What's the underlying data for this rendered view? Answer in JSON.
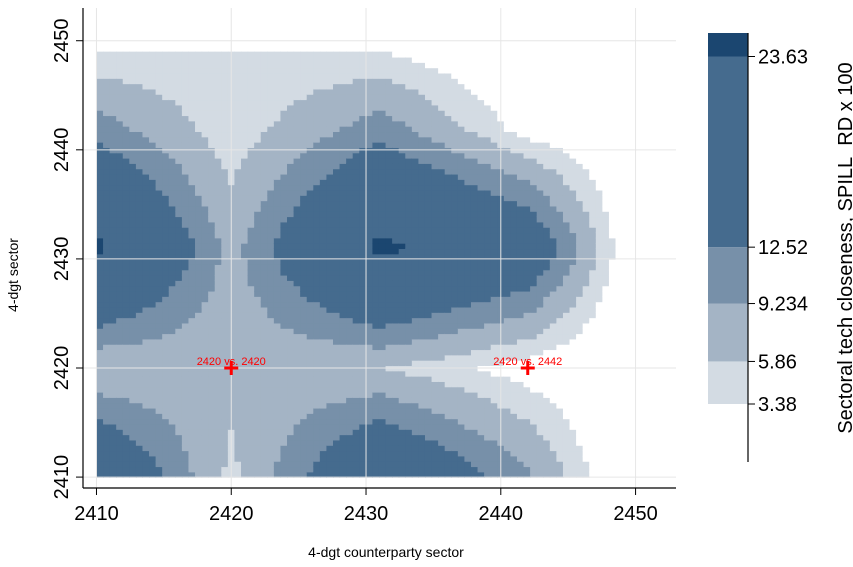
{
  "chart_data": {
    "type": "heatmap",
    "subtype": "contour",
    "xlabel": "4-dgt counterparty sector",
    "ylabel": "4-dgt sector",
    "xlim": [
      2409,
      2453
    ],
    "ylim": [
      2409,
      2453
    ],
    "xticks": [
      "2410",
      "2420",
      "2430",
      "2440",
      "2450"
    ],
    "yticks": [
      "2410",
      "2420",
      "2430",
      "2440",
      "2450"
    ],
    "grid": true,
    "legend": {
      "title": "Sectoral tech closeness, SPILL_RD x 100",
      "position": "right",
      "levels": [
        {
          "value": 23.63,
          "label": "23.63",
          "color": "#1b4670"
        },
        {
          "value": 12.52,
          "label": "12.52",
          "color": "#456b8e"
        },
        {
          "value": 9.234,
          "label": "9.234",
          "color": "#7790a9"
        },
        {
          "value": 5.86,
          "label": "5.86",
          "color": "#a4b4c5"
        },
        {
          "value": 3.38,
          "label": "3.38",
          "color": "#d3dbe3"
        }
      ],
      "floor_color": "#ffffff"
    },
    "series": [
      {
        "cells": [
          {
            "x": 2410,
            "y": 2410,
            "value": 20
          },
          {
            "x": 2420,
            "y": 2410,
            "value": 5
          },
          {
            "x": 2431,
            "y": 2410,
            "value": 20
          },
          {
            "x": 2442,
            "y": 2410,
            "value": 10
          },
          {
            "x": 2449,
            "y": 2410,
            "value": 0
          },
          {
            "x": 2410,
            "y": 2420,
            "value": 6
          },
          {
            "x": 2420,
            "y": 2420,
            "value": 7
          },
          {
            "x": 2431,
            "y": 2420,
            "value": 6
          },
          {
            "x": 2442,
            "y": 2420,
            "value": 2
          },
          {
            "x": 2449,
            "y": 2420,
            "value": 0
          },
          {
            "x": 2410,
            "y": 2431,
            "value": 25
          },
          {
            "x": 2420,
            "y": 2431,
            "value": 8
          },
          {
            "x": 2431,
            "y": 2431,
            "value": 25
          },
          {
            "x": 2442,
            "y": 2431,
            "value": 18
          },
          {
            "x": 2449,
            "y": 2431,
            "value": 2
          },
          {
            "x": 2410,
            "y": 2442,
            "value": 11
          },
          {
            "x": 2420,
            "y": 2442,
            "value": 4
          },
          {
            "x": 2431,
            "y": 2442,
            "value": 11
          },
          {
            "x": 2442,
            "y": 2442,
            "value": 2
          },
          {
            "x": 2449,
            "y": 2442,
            "value": 0
          },
          {
            "x": 2410,
            "y": 2449,
            "value": 3.5
          },
          {
            "x": 2420,
            "y": 2449,
            "value": 3.5
          },
          {
            "x": 2431,
            "y": 2449,
            "value": 3.5
          },
          {
            "x": 2442,
            "y": 2449,
            "value": 0
          },
          {
            "x": 2449,
            "y": 2449,
            "value": 0
          }
        ]
      }
    ],
    "annotations": [
      {
        "x": 2420,
        "y": 2420,
        "text": "2420 vs. 2420"
      },
      {
        "x": 2442,
        "y": 2420,
        "text": "2420 vs. 2442"
      }
    ]
  }
}
